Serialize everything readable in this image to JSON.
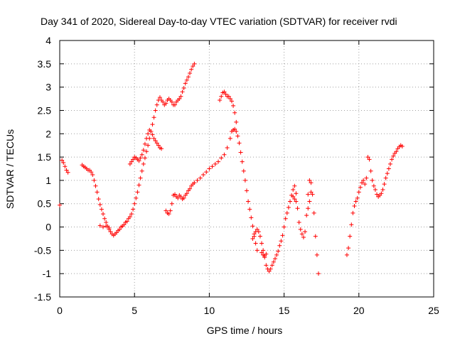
{
  "chart_data": {
    "type": "scatter",
    "title": "Day 341 of 2020, Sidereal Day-to-day VTEC variation (SDTVAR) for receiver rvdi",
    "xlabel": "GPS time / hours",
    "ylabel": "SDTVAR / TECUs",
    "xlim": [
      0,
      25
    ],
    "ylim": [
      -1.5,
      4
    ],
    "xticks": [
      "0",
      "5",
      "10",
      "15",
      "20",
      "25"
    ],
    "yticks": [
      "-1.5",
      "-1",
      "-0.5",
      "0",
      "0.5",
      "1",
      "1.5",
      "2",
      "2.5",
      "3",
      "3.5",
      "4"
    ],
    "grid": true,
    "marker": "+",
    "colors": {
      "series": "#ff0000",
      "grid": "#a0a0a0",
      "axes": "#000000"
    },
    "series": [
      {
        "values": [
          [
            0.0,
            0.47
          ],
          [
            0.15,
            1.43
          ],
          [
            0.25,
            1.38
          ],
          [
            0.35,
            1.3
          ],
          [
            0.45,
            1.22
          ],
          [
            0.55,
            1.17
          ],
          [
            1.5,
            1.33
          ],
          [
            1.6,
            1.3
          ],
          [
            1.7,
            1.28
          ],
          [
            1.8,
            1.25
          ],
          [
            1.9,
            1.22
          ],
          [
            2.0,
            1.22
          ],
          [
            2.1,
            1.18
          ],
          [
            2.2,
            1.12
          ],
          [
            2.3,
            1.0
          ],
          [
            2.4,
            0.88
          ],
          [
            2.5,
            0.75
          ],
          [
            2.6,
            0.6
          ],
          [
            2.7,
            0.48
          ],
          [
            2.8,
            0.38
          ],
          [
            2.9,
            0.28
          ],
          [
            3.0,
            0.18
          ],
          [
            3.1,
            0.1
          ],
          [
            3.2,
            0.02
          ],
          [
            3.3,
            -0.05
          ],
          [
            3.4,
            -0.1
          ],
          [
            3.5,
            -0.15
          ],
          [
            3.6,
            -0.18
          ],
          [
            3.7,
            -0.15
          ],
          [
            3.8,
            -0.12
          ],
          [
            3.9,
            -0.08
          ],
          [
            4.0,
            -0.05
          ],
          [
            4.1,
            0.0
          ],
          [
            4.2,
            0.02
          ],
          [
            4.3,
            0.05
          ],
          [
            4.4,
            0.1
          ],
          [
            4.5,
            0.12
          ],
          [
            4.6,
            0.18
          ],
          [
            4.7,
            0.22
          ],
          [
            4.8,
            0.28
          ],
          [
            4.9,
            0.38
          ],
          [
            5.0,
            0.5
          ],
          [
            5.1,
            0.62
          ],
          [
            5.2,
            0.75
          ],
          [
            5.3,
            0.9
          ],
          [
            5.4,
            1.05
          ],
          [
            5.5,
            1.2
          ],
          [
            5.6,
            1.35
          ],
          [
            5.7,
            1.48
          ],
          [
            5.8,
            1.62
          ],
          [
            5.9,
            1.75
          ],
          [
            6.0,
            1.9
          ],
          [
            6.1,
            2.05
          ],
          [
            6.2,
            2.2
          ],
          [
            6.3,
            2.35
          ],
          [
            6.4,
            2.5
          ],
          [
            6.5,
            2.62
          ],
          [
            6.6,
            2.72
          ],
          [
            6.7,
            2.78
          ],
          [
            6.8,
            2.72
          ],
          [
            6.9,
            2.68
          ],
          [
            7.0,
            2.62
          ],
          [
            7.1,
            2.65
          ],
          [
            7.2,
            2.72
          ],
          [
            7.3,
            2.75
          ],
          [
            7.4,
            2.72
          ],
          [
            7.5,
            2.68
          ],
          [
            7.6,
            2.62
          ],
          [
            7.7,
            2.62
          ],
          [
            7.8,
            2.68
          ],
          [
            7.9,
            2.72
          ],
          [
            8.0,
            2.75
          ],
          [
            8.1,
            2.8
          ],
          [
            8.2,
            2.9
          ],
          [
            8.3,
            2.98
          ],
          [
            8.4,
            3.08
          ],
          [
            8.5,
            3.15
          ],
          [
            8.6,
            3.22
          ],
          [
            8.7,
            3.3
          ],
          [
            8.8,
            3.38
          ],
          [
            8.9,
            3.45
          ],
          [
            9.0,
            3.5
          ],
          [
            2.7,
            0.03
          ],
          [
            2.9,
            0.0
          ],
          [
            3.1,
            0.02
          ],
          [
            3.3,
            -0.02
          ],
          [
            4.7,
            1.35
          ],
          [
            4.8,
            1.4
          ],
          [
            4.9,
            1.45
          ],
          [
            5.0,
            1.5
          ],
          [
            5.1,
            1.48
          ],
          [
            5.2,
            1.45
          ],
          [
            5.3,
            1.42
          ],
          [
            5.4,
            1.48
          ],
          [
            5.5,
            1.55
          ],
          [
            5.6,
            1.65
          ],
          [
            5.7,
            1.78
          ],
          [
            5.8,
            1.9
          ],
          [
            5.9,
            2.0
          ],
          [
            6.0,
            2.08
          ],
          [
            6.1,
            2.05
          ],
          [
            6.2,
            1.98
          ],
          [
            6.3,
            1.9
          ],
          [
            6.4,
            1.85
          ],
          [
            6.5,
            1.8
          ],
          [
            6.6,
            1.75
          ],
          [
            6.7,
            1.7
          ],
          [
            6.8,
            1.68
          ],
          [
            7.1,
            0.35
          ],
          [
            7.2,
            0.3
          ],
          [
            7.3,
            0.28
          ],
          [
            7.4,
            0.35
          ],
          [
            7.5,
            0.5
          ],
          [
            7.6,
            0.68
          ],
          [
            7.7,
            0.7
          ],
          [
            7.8,
            0.65
          ],
          [
            7.9,
            0.62
          ],
          [
            8.0,
            0.68
          ],
          [
            8.1,
            0.65
          ],
          [
            8.2,
            0.6
          ],
          [
            8.3,
            0.62
          ],
          [
            8.4,
            0.68
          ],
          [
            8.5,
            0.72
          ],
          [
            8.6,
            0.78
          ],
          [
            8.7,
            0.82
          ],
          [
            8.8,
            0.88
          ],
          [
            8.9,
            0.92
          ],
          [
            9.0,
            0.95
          ],
          [
            9.2,
            1.0
          ],
          [
            9.4,
            1.05
          ],
          [
            9.6,
            1.12
          ],
          [
            9.8,
            1.18
          ],
          [
            10.0,
            1.25
          ],
          [
            10.2,
            1.3
          ],
          [
            10.4,
            1.35
          ],
          [
            10.6,
            1.4
          ],
          [
            10.8,
            1.48
          ],
          [
            11.0,
            1.55
          ],
          [
            11.2,
            1.7
          ],
          [
            11.4,
            1.9
          ],
          [
            11.5,
            2.05
          ],
          [
            11.6,
            2.08
          ],
          [
            11.7,
            2.1
          ],
          [
            11.8,
            2.05
          ],
          [
            11.9,
            1.95
          ],
          [
            12.0,
            1.8
          ],
          [
            12.1,
            1.6
          ],
          [
            12.2,
            1.4
          ],
          [
            12.3,
            1.2
          ],
          [
            12.4,
            1.0
          ],
          [
            12.5,
            0.78
          ],
          [
            12.6,
            0.55
          ],
          [
            12.7,
            0.38
          ],
          [
            12.8,
            0.2
          ],
          [
            12.9,
            0.02
          ],
          [
            13.0,
            -0.2
          ],
          [
            13.1,
            -0.35
          ],
          [
            13.2,
            -0.5
          ],
          [
            10.7,
            2.72
          ],
          [
            10.8,
            2.8
          ],
          [
            10.9,
            2.88
          ],
          [
            11.0,
            2.9
          ],
          [
            11.1,
            2.85
          ],
          [
            11.2,
            2.8
          ],
          [
            11.3,
            2.8
          ],
          [
            11.4,
            2.75
          ],
          [
            11.5,
            2.7
          ],
          [
            11.6,
            2.6
          ],
          [
            11.7,
            2.45
          ],
          [
            11.8,
            2.25
          ],
          [
            12.9,
            -0.25
          ],
          [
            13.0,
            -0.15
          ],
          [
            13.1,
            -0.1
          ],
          [
            13.2,
            -0.05
          ],
          [
            13.3,
            -0.1
          ],
          [
            13.4,
            -0.2
          ],
          [
            13.5,
            -0.35
          ],
          [
            13.6,
            -0.5
          ],
          [
            13.7,
            -0.65
          ],
          [
            13.8,
            -0.82
          ],
          [
            13.9,
            -0.9
          ],
          [
            14.0,
            -0.95
          ],
          [
            14.1,
            -0.9
          ],
          [
            14.2,
            -0.82
          ],
          [
            14.3,
            -0.75
          ],
          [
            14.4,
            -0.68
          ],
          [
            14.5,
            -0.6
          ],
          [
            14.6,
            -0.52
          ],
          [
            14.7,
            -0.4
          ],
          [
            14.8,
            -0.3
          ],
          [
            14.9,
            -0.18
          ],
          [
            15.0,
            0.0
          ],
          [
            15.1,
            0.18
          ],
          [
            15.2,
            0.3
          ],
          [
            15.3,
            0.42
          ],
          [
            15.4,
            0.55
          ],
          [
            15.5,
            0.68
          ],
          [
            15.6,
            0.8
          ],
          [
            15.7,
            0.88
          ],
          [
            15.8,
            0.72
          ],
          [
            15.9,
            0.4
          ],
          [
            16.0,
            0.1
          ],
          [
            16.1,
            -0.05
          ],
          [
            16.2,
            -0.15
          ],
          [
            16.3,
            -0.22
          ],
          [
            16.4,
            -0.1
          ],
          [
            16.5,
            0.25
          ],
          [
            16.6,
            0.7
          ],
          [
            16.7,
            1.0
          ],
          [
            16.8,
            0.95
          ],
          [
            16.9,
            0.7
          ],
          [
            17.0,
            0.3
          ],
          [
            17.1,
            -0.2
          ],
          [
            17.2,
            -0.6
          ],
          [
            17.3,
            -1.0
          ],
          [
            13.5,
            -0.55
          ],
          [
            13.6,
            -0.6
          ],
          [
            13.7,
            -0.62
          ],
          [
            13.8,
            -0.58
          ],
          [
            15.6,
            0.65
          ],
          [
            15.7,
            0.6
          ],
          [
            15.8,
            0.55
          ],
          [
            16.6,
            0.4
          ],
          [
            16.7,
            0.55
          ],
          [
            16.8,
            0.75
          ],
          [
            19.2,
            -0.6
          ],
          [
            19.3,
            -0.45
          ],
          [
            19.4,
            -0.2
          ],
          [
            19.5,
            0.05
          ],
          [
            19.6,
            0.3
          ],
          [
            19.7,
            0.45
          ],
          [
            19.8,
            0.55
          ],
          [
            19.9,
            0.62
          ],
          [
            20.0,
            0.75
          ],
          [
            20.1,
            0.85
          ],
          [
            20.2,
            0.95
          ],
          [
            20.3,
            1.0
          ],
          [
            20.4,
            0.92
          ],
          [
            20.5,
            1.05
          ],
          [
            20.6,
            1.5
          ],
          [
            20.7,
            1.45
          ],
          [
            20.8,
            1.2
          ],
          [
            20.9,
            1.0
          ],
          [
            21.0,
            0.88
          ],
          [
            21.1,
            0.8
          ],
          [
            21.2,
            0.7
          ],
          [
            21.3,
            0.65
          ],
          [
            21.4,
            0.68
          ],
          [
            21.5,
            0.72
          ],
          [
            21.6,
            0.8
          ],
          [
            21.7,
            0.92
          ],
          [
            21.8,
            1.05
          ],
          [
            21.9,
            1.15
          ],
          [
            22.0,
            1.25
          ],
          [
            22.1,
            1.35
          ],
          [
            22.2,
            1.45
          ],
          [
            22.3,
            1.52
          ],
          [
            22.4,
            1.58
          ],
          [
            22.5,
            1.62
          ],
          [
            22.6,
            1.68
          ],
          [
            22.7,
            1.72
          ],
          [
            22.8,
            1.75
          ],
          [
            22.9,
            1.73
          ]
        ]
      }
    ]
  }
}
